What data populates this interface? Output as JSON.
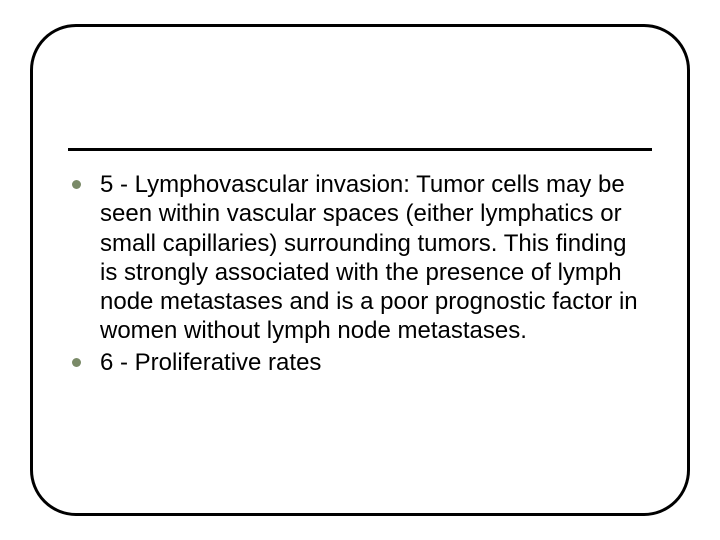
{
  "slide": {
    "background_color": "#ffffff",
    "frame": {
      "border_color": "#000000",
      "border_width": 3,
      "border_radius": 46
    },
    "divider": {
      "color": "#000000",
      "thickness": 3
    },
    "bullets": [
      {
        "text": "5 - Lymphovascular invasion: Tumor cells may be seen within vascular spaces (either lymphatics or small capillaries) surrounding tumors. This finding is strongly associated with the presence of lymph node metastases and is a poor prognostic factor in women without lymph node metastases.",
        "bullet_color": "#7a8a68"
      },
      {
        "text": "6 - Proliferative rates",
        "bullet_color": "#7a8a68"
      }
    ],
    "text_color": "#000000",
    "font_size": 24,
    "font_family": "Arial"
  }
}
